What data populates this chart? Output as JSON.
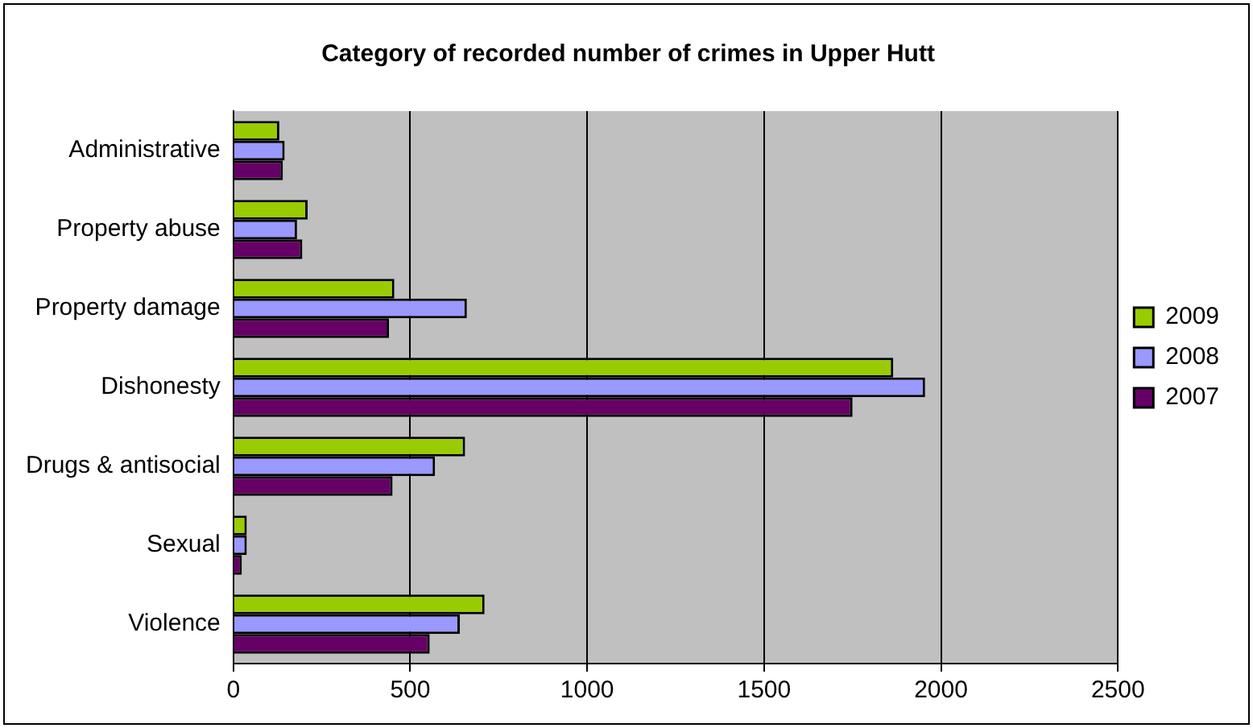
{
  "chart_data": {
    "type": "bar",
    "orientation": "horizontal",
    "title": "Category of recorded number of crimes in Upper Hutt",
    "categories": [
      "Administrative",
      "Property abuse",
      "Property damage",
      "Dishonesty",
      "Drugs & antisocial",
      "Sexual",
      "Violence"
    ],
    "series": [
      {
        "name": "2009",
        "color": "#99cc00",
        "values": [
          130,
          210,
          455,
          1865,
          655,
          38,
          710
        ]
      },
      {
        "name": "2008",
        "color": "#9999ff",
        "values": [
          145,
          180,
          660,
          1955,
          570,
          38,
          640
        ]
      },
      {
        "name": "2007",
        "color": "#660066",
        "values": [
          140,
          195,
          440,
          1750,
          450,
          24,
          555
        ]
      }
    ],
    "xlim": [
      0,
      2500
    ],
    "xticks": [
      0,
      500,
      1000,
      1500,
      2000,
      2500
    ],
    "grid": "x",
    "legend": "right"
  }
}
